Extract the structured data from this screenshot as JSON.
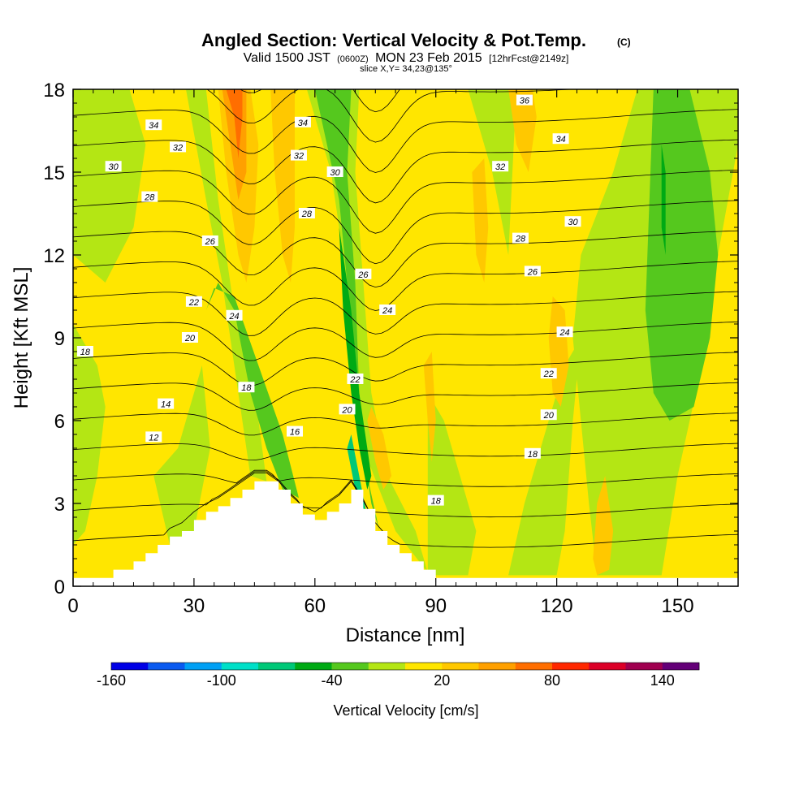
{
  "chart_data": {
    "type": "heatmap",
    "title": "Angled Section: Vertical Velocity & Pot.Temp.",
    "title_unit": "(C)",
    "subtitle_parts": [
      "Valid 1500 JST",
      "(0600Z)",
      "MON 23 Feb 2015",
      "[12hrFcst@2149z]"
    ],
    "slice_text": "slice X,Y= 34,23@135°",
    "xlabel": "Distance [nm]",
    "ylabel": "Height [Kft MSL]",
    "xlim": [
      0,
      165
    ],
    "ylim": [
      0,
      18
    ],
    "x_ticks": [
      0,
      30,
      60,
      90,
      120,
      150
    ],
    "y_ticks": [
      0,
      3,
      6,
      9,
      12,
      15,
      18
    ],
    "colorbar": {
      "label": "Vertical Velocity [cm/s]",
      "levels": [
        -160,
        -140,
        -120,
        -100,
        -80,
        -60,
        -40,
        -20,
        0,
        20,
        40,
        60,
        80,
        100,
        120,
        140,
        160
      ],
      "tick_labels": [
        -160,
        -100,
        -40,
        20,
        80,
        140
      ],
      "colors": [
        "#0000e6",
        "#0a5af0",
        "#00a0f5",
        "#00e0c8",
        "#00c878",
        "#00aa14",
        "#55c81e",
        "#b4e614",
        "#ffe600",
        "#ffc800",
        "#ffa000",
        "#ff6e00",
        "#ff2800",
        "#dc0028",
        "#a00050",
        "#640078"
      ]
    },
    "background_value_color": "#ffe600",
    "velocity_regions": [
      {
        "color": "#b4e614",
        "points": [
          [
            0,
            12
          ],
          [
            8,
            11
          ],
          [
            15,
            13
          ],
          [
            18,
            16
          ],
          [
            14,
            18
          ],
          [
            0,
            18
          ]
        ]
      },
      {
        "color": "#b4e614",
        "points": [
          [
            0,
            9.5
          ],
          [
            6,
            8
          ],
          [
            8,
            6.5
          ],
          [
            6,
            4
          ],
          [
            3,
            2
          ],
          [
            0,
            1.5
          ]
        ]
      },
      {
        "color": "#b4e614",
        "points": [
          [
            28,
            18
          ],
          [
            33,
            14
          ],
          [
            37,
            11
          ],
          [
            40,
            8
          ],
          [
            44,
            4
          ],
          [
            48,
            3.8
          ],
          [
            46,
            6
          ],
          [
            40,
            10
          ],
          [
            36,
            14
          ],
          [
            33,
            18
          ]
        ]
      },
      {
        "color": "#b4e614",
        "points": [
          [
            20,
            4
          ],
          [
            26,
            5
          ],
          [
            32,
            8
          ],
          [
            34,
            5
          ],
          [
            30,
            2
          ],
          [
            24,
            1.5
          ]
        ]
      },
      {
        "color": "#55c81e",
        "points": [
          [
            33,
            10
          ],
          [
            36,
            11
          ],
          [
            40,
            10
          ],
          [
            44,
            7
          ],
          [
            48,
            5
          ],
          [
            52,
            3.5
          ],
          [
            56,
            3.2
          ],
          [
            52,
            5.5
          ],
          [
            46,
            8
          ],
          [
            40,
            10.5
          ],
          [
            35,
            10.8
          ]
        ]
      },
      {
        "color": "#b4e614",
        "points": [
          [
            58,
            18
          ],
          [
            64,
            15
          ],
          [
            67,
            12
          ],
          [
            70,
            8
          ],
          [
            72,
            5
          ],
          [
            76,
            3.5
          ],
          [
            80,
            2
          ],
          [
            88,
            0.5
          ],
          [
            85,
            2
          ],
          [
            78,
            4
          ],
          [
            74,
            7
          ],
          [
            72,
            11
          ],
          [
            70,
            15
          ],
          [
            71,
            18
          ]
        ]
      },
      {
        "color": "#55c81e",
        "points": [
          [
            60,
            18
          ],
          [
            66,
            14
          ],
          [
            68,
            11
          ],
          [
            70,
            8
          ],
          [
            72,
            5
          ],
          [
            74,
            3
          ],
          [
            76,
            2
          ],
          [
            73,
            4
          ],
          [
            71,
            7
          ],
          [
            70,
            11
          ],
          [
            68,
            15
          ],
          [
            69,
            18
          ]
        ]
      },
      {
        "color": "#00aa14",
        "points": [
          [
            66,
            13
          ],
          [
            67,
            10
          ],
          [
            69,
            7
          ],
          [
            71,
            5
          ],
          [
            73,
            3.5
          ],
          [
            74,
            4
          ],
          [
            71,
            7
          ],
          [
            69,
            10
          ]
        ]
      },
      {
        "color": "#00c878",
        "points": [
          [
            68,
            5
          ],
          [
            70,
            3.5
          ],
          [
            73,
            2.5
          ],
          [
            71,
            4
          ],
          [
            69,
            5.5
          ]
        ]
      },
      {
        "color": "#b4e614",
        "points": [
          [
            88,
            7
          ],
          [
            92,
            6
          ],
          [
            96,
            4
          ],
          [
            100,
            2
          ],
          [
            98,
            0.4
          ],
          [
            88,
            0.4
          ]
        ]
      },
      {
        "color": "#b4e614",
        "points": [
          [
            108,
            0.4
          ],
          [
            112,
            3
          ],
          [
            116,
            5
          ],
          [
            118,
            6
          ],
          [
            122,
            8
          ],
          [
            126,
            9
          ],
          [
            124,
            6
          ],
          [
            122,
            2
          ],
          [
            120,
            0.4
          ]
        ]
      },
      {
        "color": "#b4e614",
        "points": [
          [
            98,
            18
          ],
          [
            104,
            15
          ],
          [
            108,
            12
          ],
          [
            110,
            18
          ]
        ]
      },
      {
        "color": "#b4e614",
        "points": [
          [
            126,
            12
          ],
          [
            124,
            9
          ],
          [
            126,
            6
          ],
          [
            128,
            3
          ],
          [
            130,
            0.4
          ],
          [
            146,
            0.4
          ],
          [
            150,
            4
          ],
          [
            156,
            8
          ],
          [
            160,
            12
          ],
          [
            165,
            16
          ],
          [
            165,
            18
          ],
          [
            140,
            18
          ],
          [
            134,
            15
          ]
        ]
      },
      {
        "color": "#55c81e",
        "points": [
          [
            144,
            18
          ],
          [
            143,
            14
          ],
          [
            142,
            10
          ],
          [
            144,
            7
          ],
          [
            148,
            6
          ],
          [
            154,
            6.5
          ],
          [
            158,
            9
          ],
          [
            160,
            12
          ],
          [
            158,
            15
          ],
          [
            153,
            18
          ]
        ]
      },
      {
        "color": "#00aa14",
        "points": [
          [
            146,
            16
          ],
          [
            146,
            13
          ],
          [
            147,
            12
          ],
          [
            147,
            15
          ]
        ]
      },
      {
        "color": "#ffc800",
        "points": [
          [
            36,
            18
          ],
          [
            38,
            15
          ],
          [
            41,
            12
          ],
          [
            43,
            11
          ],
          [
            45,
            13
          ],
          [
            46,
            16
          ],
          [
            44,
            18
          ]
        ]
      },
      {
        "color": "#ffa000",
        "points": [
          [
            37,
            18
          ],
          [
            39,
            16
          ],
          [
            41,
            14
          ],
          [
            43,
            15
          ],
          [
            43,
            18
          ]
        ]
      },
      {
        "color": "#ff6e00",
        "points": [
          [
            38,
            18
          ],
          [
            40,
            17
          ],
          [
            41,
            15.5
          ],
          [
            42,
            17
          ],
          [
            42,
            18
          ]
        ]
      },
      {
        "color": "#ffc800",
        "points": [
          [
            49,
            18
          ],
          [
            50,
            15
          ],
          [
            52,
            12
          ],
          [
            54,
            11
          ],
          [
            55,
            13
          ],
          [
            55,
            18
          ]
        ]
      },
      {
        "color": "#ffc800",
        "points": [
          [
            73,
            6
          ],
          [
            75,
            4.5
          ],
          [
            77,
            3.5
          ],
          [
            79,
            4
          ],
          [
            77,
            5.5
          ],
          [
            74,
            6.5
          ]
        ]
      },
      {
        "color": "#ffc800",
        "points": [
          [
            87,
            8
          ],
          [
            88,
            6
          ],
          [
            89,
            4.5
          ],
          [
            90,
            6
          ],
          [
            89,
            8.5
          ]
        ]
      },
      {
        "color": "#ffc800",
        "points": [
          [
            99,
            15
          ],
          [
            100,
            12
          ],
          [
            102,
            11
          ],
          [
            103,
            13
          ],
          [
            102,
            15.5
          ]
        ]
      },
      {
        "color": "#ffc800",
        "points": [
          [
            108,
            18
          ],
          [
            110,
            16
          ],
          [
            113,
            15
          ],
          [
            115,
            17
          ],
          [
            114,
            18
          ]
        ]
      },
      {
        "color": "#ffc800",
        "points": [
          [
            118,
            9
          ],
          [
            119,
            7
          ],
          [
            121,
            6.5
          ],
          [
            123,
            8
          ],
          [
            122,
            10
          ],
          [
            119,
            10.5
          ]
        ]
      },
      {
        "color": "#ffc800",
        "points": [
          [
            129,
            1
          ],
          [
            130,
            3
          ],
          [
            132,
            4
          ],
          [
            134,
            2
          ],
          [
            133,
            0.6
          ],
          [
            130,
            0.4
          ]
        ]
      }
    ],
    "terrain_x": [
      0,
      10,
      15,
      18,
      21,
      24,
      27,
      30,
      33,
      36,
      39,
      42,
      45,
      48,
      51,
      54,
      57,
      60,
      63,
      66,
      69,
      72,
      75,
      78,
      81,
      84,
      87,
      90
    ],
    "terrain_kft": [
      0.3,
      0.6,
      0.9,
      1.2,
      1.5,
      1.8,
      2.0,
      2.4,
      2.7,
      2.9,
      3.2,
      3.5,
      3.8,
      3.8,
      3.5,
      3.0,
      2.6,
      2.4,
      2.7,
      3.0,
      3.5,
      2.8,
      2.0,
      1.5,
      1.2,
      0.9,
      0.6,
      0.3
    ],
    "theta_levels": [
      10,
      12,
      14,
      16,
      18,
      20,
      22,
      24,
      26,
      28,
      30,
      32,
      34,
      36
    ],
    "theta_label_values": [
      "12",
      "14",
      "16",
      "18",
      "18",
      "18",
      "20",
      "22",
      "24",
      "26",
      "28",
      "30",
      "32",
      "34",
      "36",
      "20",
      "22",
      "24",
      "26",
      "28",
      "30",
      "32",
      "34",
      "36"
    ],
    "theta_labels": [
      {
        "x": 20,
        "y": 5.4,
        "text": "12"
      },
      {
        "x": 23,
        "y": 6.6,
        "text": "14"
      },
      {
        "x": 55,
        "y": 5.6,
        "text": "16"
      },
      {
        "x": 3,
        "y": 8.5,
        "text": "18"
      },
      {
        "x": 43,
        "y": 7.2,
        "text": "18"
      },
      {
        "x": 90,
        "y": 3.1,
        "text": "18"
      },
      {
        "x": 29,
        "y": 9.0,
        "text": "20"
      },
      {
        "x": 68,
        "y": 6.4,
        "text": "20"
      },
      {
        "x": 30,
        "y": 10.3,
        "text": "22"
      },
      {
        "x": 70,
        "y": 7.5,
        "text": "22"
      },
      {
        "x": 40,
        "y": 9.8,
        "text": "24"
      },
      {
        "x": 78,
        "y": 10.0,
        "text": "24"
      },
      {
        "x": 34,
        "y": 12.5,
        "text": "26"
      },
      {
        "x": 72,
        "y": 11.3,
        "text": "26"
      },
      {
        "x": 19,
        "y": 14.1,
        "text": "28"
      },
      {
        "x": 58,
        "y": 13.5,
        "text": "28"
      },
      {
        "x": 10,
        "y": 15.2,
        "text": "30"
      },
      {
        "x": 65,
        "y": 15.0,
        "text": "30"
      },
      {
        "x": 26,
        "y": 15.9,
        "text": "32"
      },
      {
        "x": 56,
        "y": 15.6,
        "text": "32"
      },
      {
        "x": 20,
        "y": 16.7,
        "text": "34"
      },
      {
        "x": 57,
        "y": 16.8,
        "text": "34"
      },
      {
        "x": 112,
        "y": 17.6,
        "text": "36"
      },
      {
        "x": 118,
        "y": 7.7,
        "text": "22"
      },
      {
        "x": 118,
        "y": 6.2,
        "text": "20"
      },
      {
        "x": 114,
        "y": 4.8,
        "text": "18"
      },
      {
        "x": 122,
        "y": 9.2,
        "text": "24"
      },
      {
        "x": 114,
        "y": 11.4,
        "text": "26"
      },
      {
        "x": 111,
        "y": 12.6,
        "text": "28"
      },
      {
        "x": 124,
        "y": 13.2,
        "text": "30"
      },
      {
        "x": 106,
        "y": 15.2,
        "text": "32"
      },
      {
        "x": 121,
        "y": 16.2,
        "text": "34"
      }
    ]
  }
}
